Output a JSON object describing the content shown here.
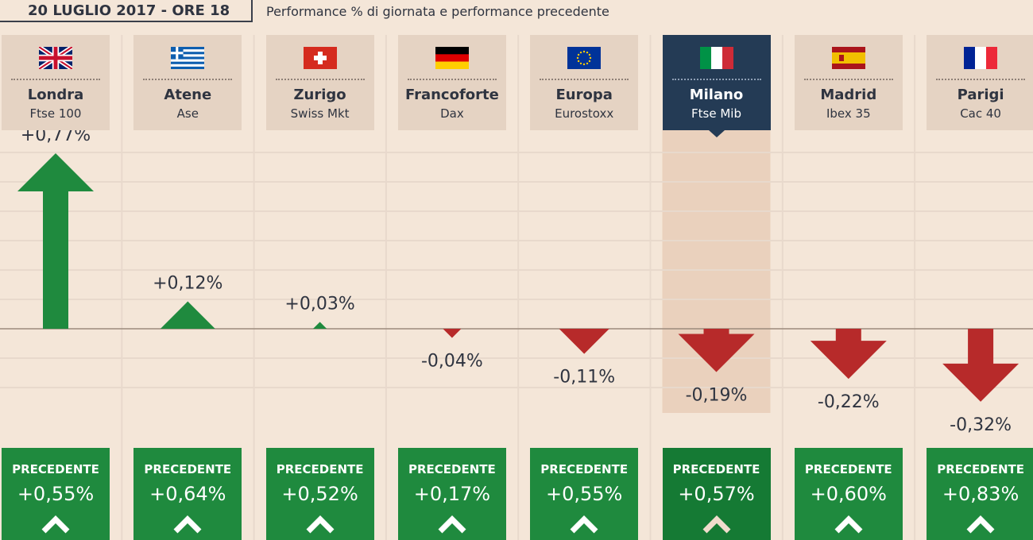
{
  "header": {
    "date": "20 LUGLIO 2017 - ORE 18",
    "subtitle": "Performance % di giornata e performance precedente"
  },
  "colors": {
    "positive": "#1f8a3e",
    "negative": "#b72a2a",
    "header_bg": "#e5d3c3",
    "active_bg": "#243b55",
    "background": "#f4e6d8"
  },
  "prev_label": "PRECEDENTE",
  "chart_data": {
    "type": "bar",
    "categories": [
      "Londra",
      "Atene",
      "Zurigo",
      "Francoforte",
      "Europa",
      "Milano",
      "Madrid",
      "Parigi"
    ],
    "indices": [
      "Ftse 100",
      "Ase",
      "Swiss Mkt",
      "Dax",
      "Eurostoxx",
      "Ftse Mib",
      "Ibex 35",
      "Cac 40"
    ],
    "values": [
      0.77,
      0.12,
      0.03,
      -0.04,
      -0.11,
      -0.19,
      -0.22,
      -0.32
    ],
    "value_labels": [
      "+0,77%",
      "+0,12%",
      "+0,03%",
      "-0,04%",
      "-0,11%",
      "-0,19%",
      "-0,22%",
      "-0,32%"
    ],
    "previous": [
      0.55,
      0.64,
      0.52,
      0.17,
      0.55,
      0.57,
      0.6,
      0.83
    ],
    "previous_labels": [
      "+0,55%",
      "+0,64%",
      "+0,52%",
      "+0,17%",
      "+0,55%",
      "+0,57%",
      "+0,60%",
      "+0,83%"
    ],
    "flags": [
      "uk-flag",
      "greece-flag",
      "switzerland-flag",
      "germany-flag",
      "eu-flag",
      "italy-flag",
      "spain-flag",
      "france-flag"
    ],
    "highlighted": "Milano",
    "title": "Performance % di giornata e performance precedente"
  }
}
